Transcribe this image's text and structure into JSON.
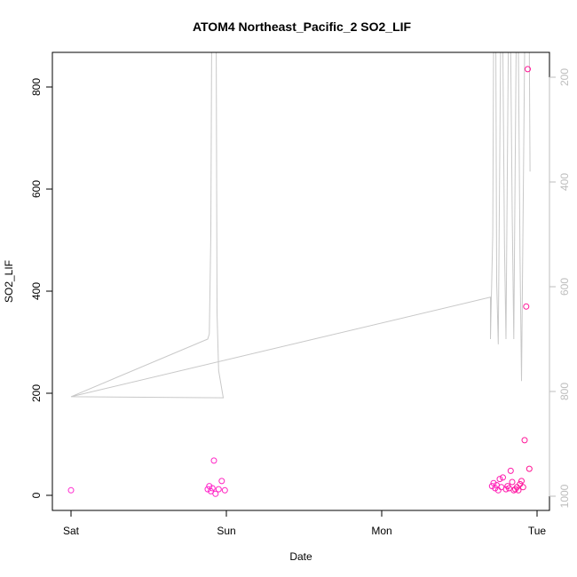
{
  "chart_data": {
    "type": "scatter",
    "title": "ATOM4 Northeast_Pacific_2 SO2_LIF",
    "xlabel": "Date",
    "ylabel": "SO2_LIF",
    "x_axis": {
      "unit": "days",
      "range": [
        0,
        3.05
      ],
      "ticks": [
        {
          "value": 0,
          "label": "Sat"
        },
        {
          "value": 1,
          "label": "Sun"
        },
        {
          "value": 2,
          "label": "Mon"
        },
        {
          "value": 3,
          "label": "Tue"
        }
      ]
    },
    "y_axis": {
      "range": [
        -30,
        870
      ],
      "ticks": [
        0,
        200,
        400,
        600,
        800
      ]
    },
    "y2_axis": {
      "range_top_to_bottom": [
        150,
        1030
      ],
      "reversed": true,
      "ticks": [
        200,
        400,
        600,
        800,
        1000
      ],
      "color": "#bdbdbd"
    },
    "colors": {
      "points": "#ff1493",
      "line": "#c8c8c8"
    },
    "grid": false,
    "series": [
      {
        "type": "scatter",
        "points": [
          [
            0.0,
            10
          ],
          [
            0.88,
            12
          ],
          [
            0.89,
            18
          ],
          [
            0.9,
            8
          ],
          [
            0.91,
            14
          ],
          [
            0.92,
            68
          ],
          [
            0.93,
            3
          ],
          [
            0.95,
            12
          ],
          [
            0.97,
            28
          ],
          [
            0.99,
            10
          ],
          [
            2.71,
            18
          ],
          [
            2.72,
            24
          ],
          [
            2.73,
            14
          ],
          [
            2.74,
            20
          ],
          [
            2.75,
            10
          ],
          [
            2.76,
            32
          ],
          [
            2.77,
            16
          ],
          [
            2.78,
            35
          ],
          [
            2.8,
            12
          ],
          [
            2.81,
            18
          ],
          [
            2.82,
            14
          ],
          [
            2.83,
            48
          ],
          [
            2.84,
            26
          ],
          [
            2.85,
            10
          ],
          [
            2.86,
            12
          ],
          [
            2.87,
            16
          ],
          [
            2.88,
            10
          ],
          [
            2.89,
            22
          ],
          [
            2.9,
            28
          ],
          [
            2.91,
            16
          ],
          [
            2.92,
            108
          ],
          [
            2.93,
            370
          ],
          [
            2.94,
            835
          ],
          [
            2.95,
            52
          ]
        ]
      },
      {
        "type": "line",
        "axis": "y2",
        "points": [
          [
            0.0,
            810
          ],
          [
            0.98,
            812
          ],
          [
            0.95,
            760
          ],
          [
            0.94,
            650
          ],
          [
            0.935,
            150
          ],
          [
            0.905,
            150
          ],
          [
            0.9,
            500
          ],
          [
            0.89,
            690
          ],
          [
            0.88,
            700
          ],
          [
            0.0,
            810
          ],
          [
            2.7,
            620
          ],
          [
            2.7,
            700
          ],
          [
            2.715,
            500
          ],
          [
            2.72,
            150
          ],
          [
            2.735,
            150
          ],
          [
            2.74,
            590
          ],
          [
            2.75,
            710
          ],
          [
            2.765,
            150
          ],
          [
            2.78,
            150
          ],
          [
            2.79,
            520
          ],
          [
            2.8,
            700
          ],
          [
            2.815,
            150
          ],
          [
            2.83,
            150
          ],
          [
            2.84,
            460
          ],
          [
            2.85,
            700
          ],
          [
            2.865,
            150
          ],
          [
            2.88,
            150
          ],
          [
            2.89,
            540
          ],
          [
            2.9,
            780
          ],
          [
            2.91,
            460
          ],
          [
            2.92,
            150
          ],
          [
            2.95,
            150
          ],
          [
            2.955,
            380
          ]
        ]
      }
    ]
  }
}
